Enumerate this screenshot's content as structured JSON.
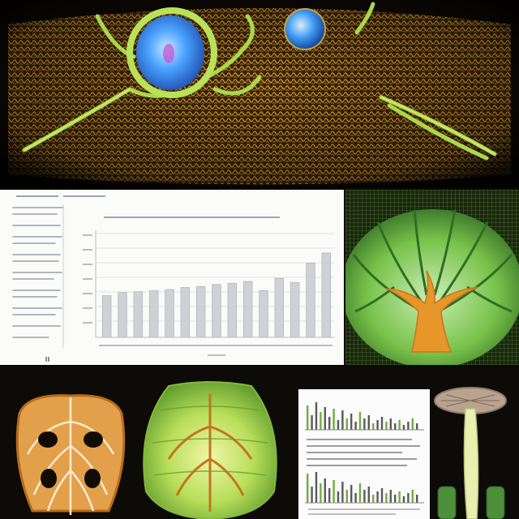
{
  "chart_data": {
    "type": "bar",
    "values": [
      41,
      44,
      45,
      46,
      47,
      49,
      50,
      52,
      53,
      55,
      46,
      58,
      54,
      73,
      83
    ]
  },
  "colors": {
    "background": "#0a0906",
    "mesh": "#c8922e",
    "vein": "#a9d84a",
    "cell": "#4aa3ff",
    "bar": "#cfd1d4",
    "leaf": "#79c24a",
    "trunk": "#e7962a"
  }
}
